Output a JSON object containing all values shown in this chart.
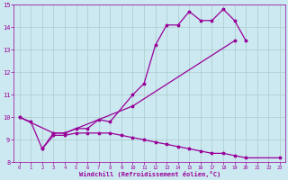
{
  "xlabel": "Windchill (Refroidissement éolien,°C)",
  "xlim": [
    -0.5,
    23.5
  ],
  "ylim": [
    8,
    15
  ],
  "xticks": [
    0,
    1,
    2,
    3,
    4,
    5,
    6,
    7,
    8,
    9,
    10,
    11,
    12,
    13,
    14,
    15,
    16,
    17,
    18,
    19,
    20,
    21,
    22,
    23
  ],
  "yticks": [
    8,
    9,
    10,
    11,
    12,
    13,
    14,
    15
  ],
  "bg_color": "#cce8f0",
  "line_color": "#990099",
  "grid_color": "#aacccc",
  "line1_segments": [
    {
      "x": [
        0,
        1,
        2,
        3,
        4,
        5,
        6,
        7,
        8,
        10,
        11,
        12,
        13,
        14,
        15,
        16,
        17,
        18,
        19,
        20
      ],
      "y": [
        10.0,
        9.8,
        8.6,
        9.3,
        9.3,
        9.5,
        9.5,
        9.9,
        9.8,
        11.0,
        11.5,
        13.2,
        14.1,
        14.1,
        14.7,
        14.3,
        14.3,
        14.8,
        14.3,
        13.4
      ]
    }
  ],
  "line2_segments": [
    {
      "x": [
        0,
        3,
        4,
        10,
        19
      ],
      "y": [
        10.0,
        9.3,
        9.3,
        10.5,
        13.4
      ]
    }
  ],
  "line3_segments": [
    {
      "x": [
        2,
        3,
        4,
        5,
        6,
        7,
        8,
        9,
        10,
        11,
        12,
        13,
        14,
        15,
        16,
        17,
        18,
        19,
        20,
        23
      ],
      "y": [
        8.6,
        9.2,
        9.2,
        9.3,
        9.3,
        9.3,
        9.3,
        9.2,
        9.1,
        9.0,
        8.9,
        8.8,
        8.7,
        8.6,
        8.5,
        8.4,
        8.4,
        8.3,
        8.2,
        8.2
      ]
    }
  ]
}
